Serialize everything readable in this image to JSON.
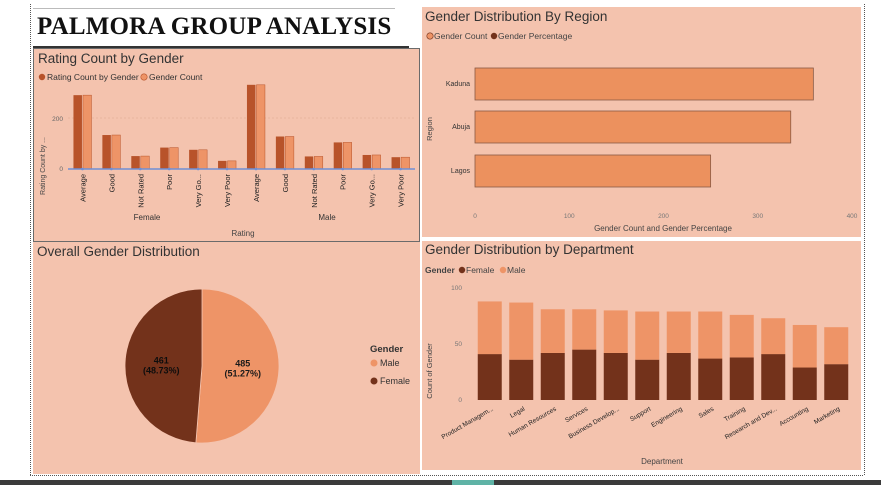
{
  "dashboard": {
    "title": "PALMORA GROUP ANALYSIS"
  },
  "colors": {
    "panel_bg": "#f4c3ae",
    "dark": "#73321b",
    "mid": "#b8532a",
    "light": "#ee9467",
    "bar_region": "#ec915e"
  },
  "rating_chart": {
    "title": "Rating Count by Gender",
    "legend": [
      "Rating Count by Gender",
      "Gender Count"
    ],
    "xlabel": "Rating",
    "ylabel": "Rating Count by ...",
    "y_tick": "200",
    "y_zero": "0",
    "groups": [
      {
        "name": "Female",
        "ratings": [
          "Average",
          "Good",
          "Not Rated",
          "Poor",
          "Very Go...",
          "Very Poor"
        ]
      },
      {
        "name": "Male",
        "ratings": [
          "Average",
          "Good",
          "Not Rated",
          "Poor",
          "Very Go...",
          "Very Poor"
        ]
      }
    ]
  },
  "region_chart": {
    "title": "Gender Distribution By Region",
    "legend": [
      "Gender Count",
      "Gender Percentage"
    ],
    "xlabel": "Gender Count and Gender Percentage",
    "ylabel": "Region",
    "ticks": [
      "0",
      "100",
      "200",
      "300",
      "400"
    ]
  },
  "pie_chart": {
    "title": "Overall Gender Distribution",
    "legend_title": "Gender",
    "legend": [
      "Male",
      "Female"
    ],
    "slices": [
      {
        "label": "Male",
        "count": "485",
        "pct": "(51.27%)"
      },
      {
        "label": "Female",
        "count": "461",
        "pct": "(48.73%)"
      }
    ]
  },
  "dept_chart": {
    "title": "Gender Distribution by Department",
    "legend_title": "Gender",
    "legend": [
      "Female",
      "Male"
    ],
    "xlabel": "Department",
    "ylabel": "Count of Gender",
    "ticks": [
      "0",
      "50",
      "100"
    ]
  },
  "chart_data": [
    {
      "type": "bar",
      "title": "Rating Count by Gender",
      "xlabel": "Rating",
      "ylabel": "Rating Count by ...",
      "categories": [
        "Female|Average",
        "Female|Good",
        "Female|Not Rated",
        "Female|Poor",
        "Female|Very Go...",
        "Female|Very Poor",
        "Male|Average",
        "Male|Good",
        "Male|Not Rated",
        "Male|Poor",
        "Male|Very Go...",
        "Male|Very Poor"
      ],
      "series": [
        {
          "name": "Rating Count by Gender",
          "values": [
            200,
            92,
            35,
            58,
            52,
            22,
            228,
            88,
            34,
            72,
            38,
            32
          ]
        },
        {
          "name": "Gender Count",
          "values": [
            200,
            92,
            35,
            58,
            52,
            22,
            228,
            88,
            34,
            72,
            38,
            32
          ]
        }
      ],
      "ylim": [
        0,
        260
      ],
      "legend_position": "top-left"
    },
    {
      "type": "bar",
      "orientation": "horizontal",
      "title": "Gender Distribution By Region",
      "xlabel": "Gender Count and Gender Percentage",
      "ylabel": "Region",
      "categories": [
        "Kaduna",
        "Abuja",
        "Lagos"
      ],
      "series": [
        {
          "name": "Gender Count",
          "values": [
            359,
            335,
            250
          ]
        },
        {
          "name": "Gender Percentage",
          "values": [
            0,
            0,
            0
          ]
        }
      ],
      "xlim": [
        0,
        400
      ],
      "legend_position": "top-left"
    },
    {
      "type": "pie",
      "title": "Overall Gender Distribution",
      "categories": [
        "Male",
        "Female"
      ],
      "values": [
        485,
        461
      ],
      "percentages": [
        51.27,
        48.73
      ],
      "legend_position": "right"
    },
    {
      "type": "bar",
      "stacked": true,
      "title": "Gender Distribution by Department",
      "xlabel": "Department",
      "ylabel": "Count of Gender",
      "categories": [
        "Product Managem...",
        "Legal",
        "Human Resources",
        "Services",
        "Business Develop...",
        "Support",
        "Engineering",
        "Sales",
        "Training",
        "Research and Dev...",
        "Accounting",
        "Marketing"
      ],
      "series": [
        {
          "name": "Female",
          "values": [
            41,
            36,
            42,
            45,
            42,
            36,
            42,
            37,
            38,
            41,
            29,
            32
          ]
        },
        {
          "name": "Male",
          "values": [
            47,
            51,
            39,
            36,
            38,
            43,
            37,
            42,
            38,
            32,
            38,
            33
          ]
        }
      ],
      "ylim": [
        0,
        100
      ],
      "legend_position": "top-left"
    }
  ]
}
